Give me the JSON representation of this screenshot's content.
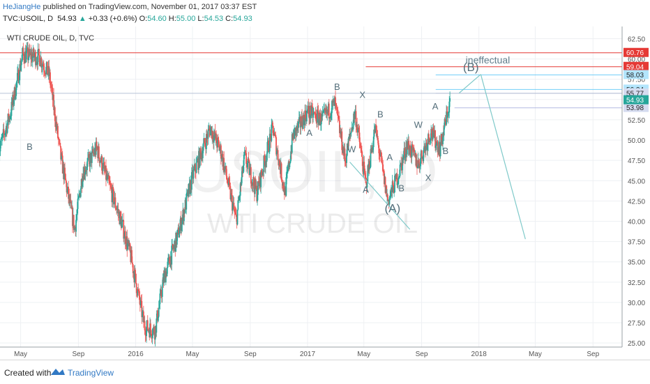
{
  "header": {
    "author": "HeJiangHe",
    "published": " published on TradingView.com, November 01, 2017 03:37 EST",
    "symbol": "TVC:USOIL, D",
    "last": "54.93",
    "change": "+0.33 (+0.6%)",
    "o_label": "O:",
    "o": "54.60",
    "h_label": "H:",
    "h": "55.00",
    "l_label": "L:",
    "l": "54.53",
    "c_label": "C:",
    "c": "54.93"
  },
  "footer": {
    "created": "Created with",
    "brand": "TradingView"
  },
  "colors": {
    "up": "#26a69a",
    "down": "#ef5350",
    "author": "#3179c4",
    "resistance": "#e53935",
    "wave_line": "#7ec9c9"
  },
  "chart_data": {
    "type": "candlestick",
    "title": "WTI CRUDE OIL, D, TVC",
    "watermark_symbol": "USOIL, D",
    "watermark_name": "WTI CRUDE OIL",
    "ylim": [
      24.5,
      64.0
    ],
    "y_ticks": [
      "62.50",
      "60.00",
      "57.50",
      "55.00",
      "52.50",
      "50.00",
      "47.50",
      "45.00",
      "42.50",
      "40.00",
      "37.50",
      "35.00",
      "32.50",
      "30.00",
      "27.50",
      "25.00"
    ],
    "x_ticks": [
      "May",
      "Sep",
      "2016",
      "May",
      "Sep",
      "2017",
      "May",
      "Sep",
      "2018",
      "May",
      "Sep"
    ],
    "x_tick_dates": [
      "2015-05-01",
      "2015-09-01",
      "2016-01-01",
      "2016-05-01",
      "2016-09-01",
      "2017-01-01",
      "2017-05-01",
      "2017-09-01",
      "2018-01-01",
      "2018-05-01",
      "2018-09-01"
    ],
    "price_path": [
      [
        "2015-03-15",
        48.5
      ],
      [
        "2015-04-10",
        53.5
      ],
      [
        "2015-05-05",
        60.5
      ],
      [
        "2015-06-10",
        60.2
      ],
      [
        "2015-07-01",
        58.0
      ],
      [
        "2015-07-25",
        48.0
      ],
      [
        "2015-08-24",
        39.0
      ],
      [
        "2015-09-10",
        46.0
      ],
      [
        "2015-10-10",
        49.0
      ],
      [
        "2015-10-30",
        45.5
      ],
      [
        "2015-12-01",
        40.0
      ],
      [
        "2015-12-22",
        35.5
      ],
      [
        "2016-01-20",
        27.0
      ],
      [
        "2016-02-11",
        26.5
      ],
      [
        "2016-03-01",
        33.0
      ],
      [
        "2016-04-01",
        38.5
      ],
      [
        "2016-05-01",
        45.5
      ],
      [
        "2016-06-08",
        51.5
      ],
      [
        "2016-07-01",
        48.5
      ],
      [
        "2016-08-02",
        40.0
      ],
      [
        "2016-08-20",
        48.0
      ],
      [
        "2016-09-15",
        43.5
      ],
      [
        "2016-10-19",
        51.5
      ],
      [
        "2016-11-14",
        43.5
      ],
      [
        "2016-12-01",
        50.5
      ],
      [
        "2017-01-01",
        53.5
      ],
      [
        "2017-02-01",
        52.5
      ],
      [
        "2017-02-28",
        54.5
      ],
      [
        "2017-03-22",
        47.5
      ],
      [
        "2017-04-12",
        53.5
      ],
      [
        "2017-05-05",
        44.5
      ],
      [
        "2017-05-25",
        51.5
      ],
      [
        "2017-06-21",
        42.5
      ],
      [
        "2017-07-15",
        46.0
      ],
      [
        "2017-08-01",
        49.5
      ],
      [
        "2017-08-25",
        47.0
      ],
      [
        "2017-09-20",
        51.0
      ],
      [
        "2017-10-10",
        49.0
      ],
      [
        "2017-11-01",
        54.93
      ]
    ],
    "current_price": "54.93",
    "resistance_lines": [
      {
        "price": 60.76,
        "label": "60.76",
        "color": "#e53935"
      },
      {
        "price": 59.04,
        "label": "59.04",
        "color": "#e53935"
      }
    ],
    "target_levels": [
      {
        "price": 58.03,
        "label": "58.03",
        "color": "#4fc3f7"
      },
      {
        "price": 56.24,
        "label": "56.24",
        "color": "#4fc3f7"
      },
      {
        "price": 55.77,
        "label": "55.77",
        "color": "#9fa8da"
      },
      {
        "price": 53.98,
        "label": "53.98",
        "color": "#9fa8da"
      }
    ],
    "ineffectual_label": "ineffectual",
    "wave_labels": [
      {
        "text": "B",
        "date": "2015-05-20",
        "price": 48.8
      },
      {
        "text": "B",
        "date": "2017-03-05",
        "price": 56.2
      },
      {
        "text": "A",
        "date": "2017-01-05",
        "price": 50.5
      },
      {
        "text": "X",
        "date": "2017-04-28",
        "price": 55.2
      },
      {
        "text": "W",
        "date": "2017-04-05",
        "price": 48.5
      },
      {
        "text": "A",
        "date": "2017-05-05",
        "price": 43.5
      },
      {
        "text": "B",
        "date": "2017-06-05",
        "price": 52.8
      },
      {
        "text": "A",
        "date": "2017-06-25",
        "price": 47.5
      },
      {
        "text": "B",
        "date": "2017-07-20",
        "price": 43.7
      },
      {
        "text": "(A)",
        "date": "2017-07-01",
        "price": 41.1
      },
      {
        "text": "W",
        "date": "2017-08-25",
        "price": 51.5
      },
      {
        "text": "X",
        "date": "2017-09-15",
        "price": 45.0
      },
      {
        "text": "A",
        "date": "2017-09-30",
        "price": 53.8
      },
      {
        "text": "B",
        "date": "2017-10-22",
        "price": 48.3
      },
      {
        "text": "(B)",
        "date": "2017-12-15",
        "price": 58.5
      }
    ],
    "trend_lines": [
      {
        "from": [
          "2017-04-01",
          47.3
        ],
        "to": [
          "2017-08-07",
          39.0
        ]
      },
      {
        "from": [
          "2017-11-20",
          55.8
        ],
        "to": [
          "2018-01-05",
          58.1
        ]
      },
      {
        "from": [
          "2018-01-05",
          58.1
        ],
        "to": [
          "2018-04-10",
          37.8
        ]
      }
    ],
    "grid": true
  }
}
